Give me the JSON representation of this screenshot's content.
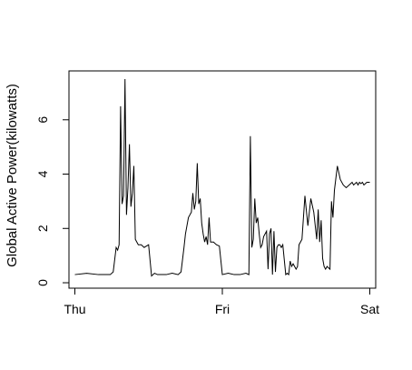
{
  "chart_data": {
    "type": "line",
    "title": "",
    "xlabel": "",
    "ylabel": "Global Active Power(kilowatts)",
    "x_ticks": [
      {
        "label": "Thu",
        "day": 0
      },
      {
        "label": "Fri",
        "day": 1
      },
      {
        "label": "Sat",
        "day": 2
      }
    ],
    "y_ticks": [
      0,
      2,
      4,
      6
    ],
    "xlim": [
      -0.04,
      2.04
    ],
    "ylim": [
      -0.2,
      7.8
    ],
    "grid": false,
    "color": "#000000",
    "series": [
      {
        "values_x": [
          0.0,
          0.08,
          0.16,
          0.24,
          0.26,
          0.28,
          0.29,
          0.3,
          0.31,
          0.32,
          0.33,
          0.34,
          0.35,
          0.36,
          0.37,
          0.38,
          0.39,
          0.4,
          0.41,
          0.43,
          0.45,
          0.47,
          0.5,
          0.52,
          0.53,
          0.54,
          0.56,
          0.58,
          0.62,
          0.66,
          0.7,
          0.72,
          0.74,
          0.75,
          0.77,
          0.79,
          0.8,
          0.81,
          0.82,
          0.83,
          0.84,
          0.85,
          0.86,
          0.87,
          0.88,
          0.89,
          0.9,
          0.91,
          0.92,
          0.94,
          0.96,
          0.98,
          1.0,
          1.04,
          1.08,
          1.12,
          1.16,
          1.18,
          1.19,
          1.2,
          1.21,
          1.22,
          1.23,
          1.24,
          1.25,
          1.26,
          1.27,
          1.28,
          1.29,
          1.3,
          1.31,
          1.32,
          1.33,
          1.34,
          1.35,
          1.36,
          1.37,
          1.38,
          1.39,
          1.4,
          1.41,
          1.43,
          1.44,
          1.45,
          1.46,
          1.47,
          1.48,
          1.49,
          1.5,
          1.51,
          1.52,
          1.54,
          1.56,
          1.58,
          1.6,
          1.62,
          1.64,
          1.65,
          1.66,
          1.67,
          1.68,
          1.69,
          1.7,
          1.71,
          1.72,
          1.73,
          1.74,
          1.75,
          1.76,
          1.78,
          1.8,
          1.82,
          1.84,
          1.86,
          1.88,
          1.89,
          1.9,
          1.91,
          1.92,
          1.93,
          1.94,
          1.95,
          1.96,
          1.97,
          1.98,
          2.0
        ],
        "values_y": [
          0.3,
          0.35,
          0.3,
          0.3,
          0.4,
          1.3,
          1.2,
          1.4,
          6.5,
          2.9,
          3.2,
          7.5,
          2.5,
          3.5,
          5.1,
          2.8,
          3.3,
          4.3,
          1.6,
          1.4,
          1.4,
          1.3,
          1.4,
          0.25,
          0.3,
          0.35,
          0.3,
          0.3,
          0.3,
          0.35,
          0.3,
          0.4,
          1.3,
          1.8,
          2.4,
          2.6,
          3.3,
          2.7,
          3.0,
          4.4,
          2.9,
          3.1,
          2.2,
          1.8,
          1.5,
          1.7,
          1.4,
          2.4,
          1.5,
          1.5,
          1.4,
          1.35,
          0.3,
          0.35,
          0.3,
          0.3,
          0.35,
          0.3,
          5.4,
          1.3,
          1.6,
          3.1,
          2.2,
          2.4,
          1.8,
          1.3,
          1.4,
          1.7,
          1.8,
          1.9,
          0.5,
          1.8,
          2.0,
          0.3,
          1.9,
          0.4,
          1.3,
          1.4,
          1.4,
          1.3,
          1.4,
          0.3,
          0.35,
          0.3,
          0.8,
          0.6,
          0.7,
          0.6,
          0.5,
          0.6,
          1.4,
          1.6,
          3.2,
          2.1,
          3.1,
          2.6,
          1.6,
          2.7,
          1.5,
          2.3,
          0.9,
          0.6,
          0.5,
          0.6,
          0.55,
          0.5,
          3.0,
          2.4,
          3.4,
          4.3,
          3.8,
          3.6,
          3.5,
          3.6,
          3.7,
          3.6,
          3.65,
          3.7,
          3.6,
          3.7,
          3.65,
          3.7,
          3.6,
          3.65,
          3.7,
          3.7
        ]
      }
    ]
  }
}
